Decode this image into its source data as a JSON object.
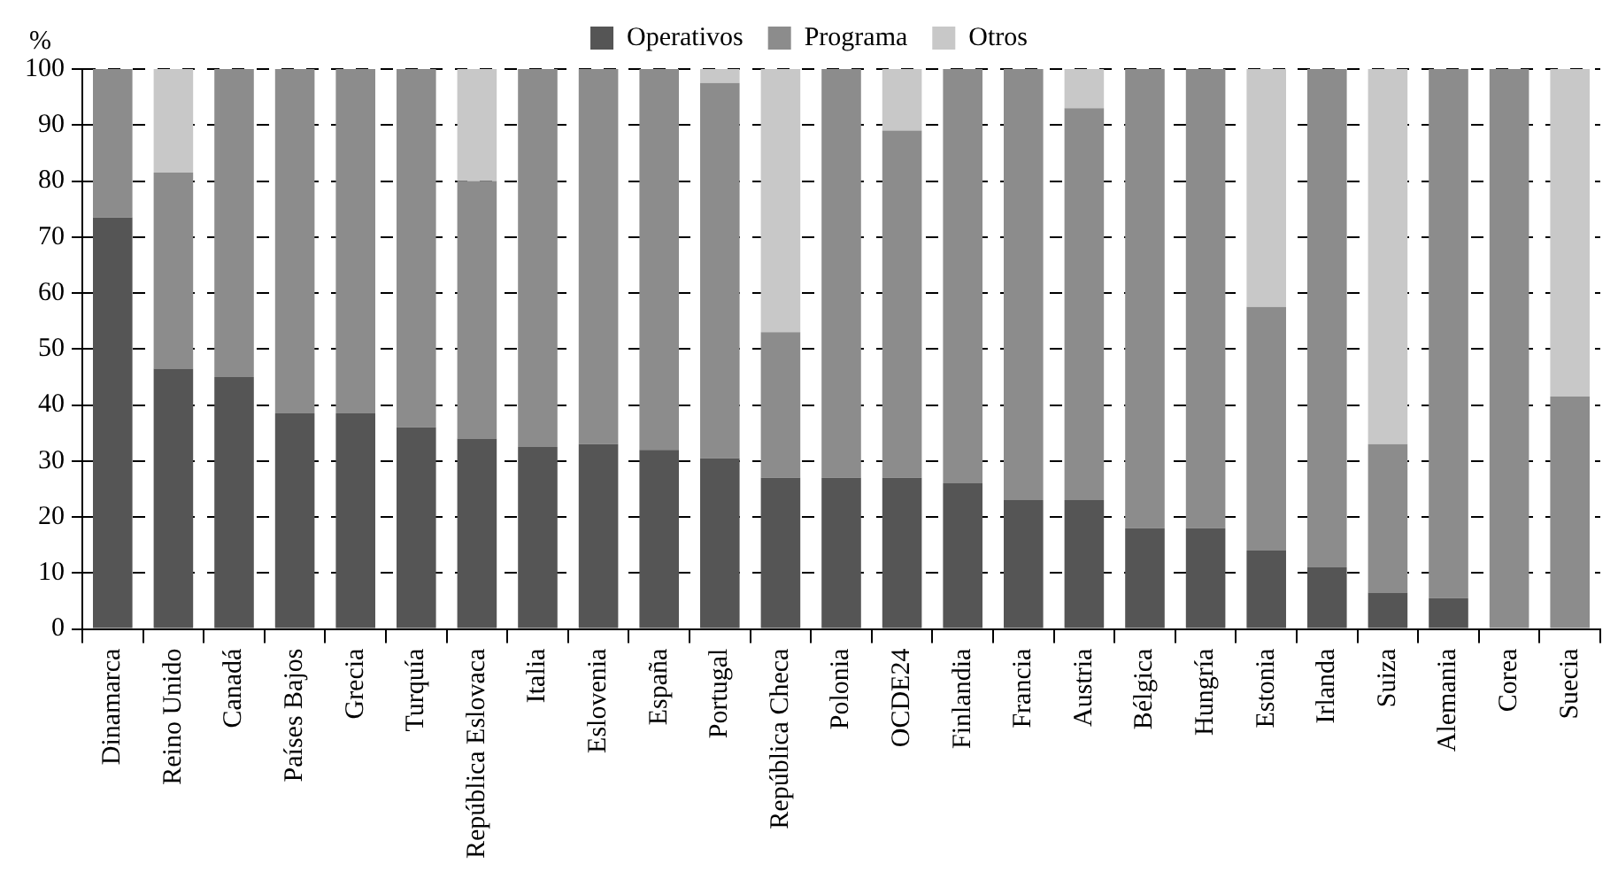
{
  "chart_data": {
    "type": "bar",
    "stacked": true,
    "ylabel": "%",
    "legend": "top",
    "grid": "y",
    "ylim": [
      0,
      100
    ],
    "yticks": [
      0,
      10,
      20,
      30,
      40,
      50,
      60,
      70,
      80,
      90,
      100
    ],
    "categories": [
      "Dinamarca",
      "Reino Unido",
      "Canadá",
      "Países Bajos",
      "Grecia",
      "Turquía",
      "República Eslovaca",
      "Italia",
      "Eslovenia",
      "España",
      "Portugal",
      "República Checa",
      "Polonia",
      "OCDE24",
      "Finlandia",
      "Francia",
      "Austria",
      "Bélgica",
      "Hungría",
      "Estonia",
      "Irlanda",
      "Suiza",
      "Alemania",
      "Corea",
      "Suecia"
    ],
    "series": [
      {
        "name": "Operativos",
        "color": "#555555",
        "values": [
          73.5,
          46.5,
          45,
          38.5,
          38.5,
          36,
          34,
          32.5,
          33,
          32,
          30.5,
          27,
          27,
          27,
          26,
          23,
          23,
          18,
          18,
          14,
          11,
          6.5,
          5.5,
          0,
          0
        ]
      },
      {
        "name": "Programa",
        "color": "#8c8c8c",
        "values": [
          26.5,
          35,
          55,
          61.5,
          61.5,
          64,
          46,
          67.5,
          67,
          68,
          67,
          26,
          73,
          62,
          74,
          77,
          70,
          82,
          82,
          43.5,
          89,
          26.5,
          94.5,
          100,
          41.5
        ]
      },
      {
        "name": "Otros",
        "color": "#c8c8c8",
        "values": [
          0,
          18.5,
          0,
          0,
          0,
          0,
          20,
          0,
          0,
          0,
          2.5,
          47,
          0,
          11,
          0,
          0,
          7,
          0,
          0,
          42.5,
          0,
          67,
          0,
          0,
          58.5
        ]
      }
    ]
  }
}
